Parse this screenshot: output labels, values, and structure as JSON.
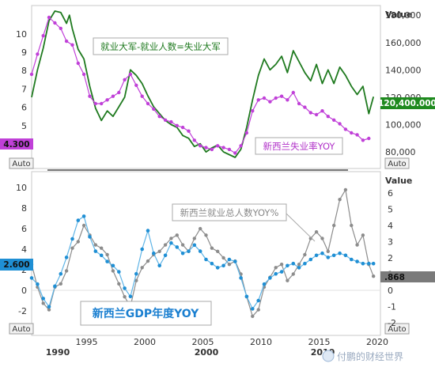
{
  "colors": {
    "unemployed": "#1f7a1f",
    "unemp_rate": "#c040d8",
    "gdp": "#1f8fd4",
    "employment": "#8c8c8c",
    "annotation_green": "#1f7a1f",
    "annotation_purple": "#b030c8",
    "annotation_blue": "#1a7fd0",
    "annotation_gray": "#888888",
    "badge_purple": "#c040d8",
    "badge_green": "#1f8a1f",
    "badge_blue": "#1f8fd4",
    "badge_gray": "#7a7a7a"
  },
  "labels": {
    "value_top": "Value",
    "value_bottom": "Value",
    "auto": "Auto",
    "annot_unemployed": "就业大军-就业人数=失业大军",
    "annot_rate": "新西兰失业率YOY",
    "annot_employment": "新西兰就业总人数YOY%",
    "annot_gdp": "新西兰GDP年度YOY",
    "badge_rate": "4.300",
    "badge_unemployed": "120,400.000",
    "badge_gdp": "2.600",
    "badge_employment": ".868",
    "watermark": "付鹏的财经世界"
  },
  "xaxis": {
    "years_top": [
      "1995",
      "2000",
      "2005",
      "2010",
      "2015",
      "2020"
    ],
    "years_bottom": [
      "1990",
      "2000",
      "2010"
    ]
  },
  "chart_data": [
    {
      "type": "line",
      "xlim": [
        1990,
        2020
      ],
      "y_left": {
        "ticks": [
          5,
          6,
          7,
          8,
          9,
          10
        ]
      },
      "y_right": {
        "ticks": [
          "80,000",
          "100,000",
          "120,000",
          "140,000",
          "160,000",
          "180,000"
        ]
      },
      "series": [
        {
          "name": "就业大军-就业人数=失业大军",
          "axis": "right",
          "points": [
            [
              1990.0,
              120000
            ],
            [
              1990.5,
              140000
            ],
            [
              1991.0,
              156000
            ],
            [
              1991.5,
              176000
            ],
            [
              1992.0,
              183000
            ],
            [
              1992.5,
              182000
            ],
            [
              1993.0,
              174000
            ],
            [
              1993.25,
              180000
            ],
            [
              1993.5,
              170000
            ],
            [
              1994.0,
              155000
            ],
            [
              1994.5,
              148000
            ],
            [
              1995.0,
              128000
            ],
            [
              1995.5,
              112000
            ],
            [
              1996.0,
              103000
            ],
            [
              1996.5,
              110000
            ],
            [
              1997.0,
              106000
            ],
            [
              1997.5,
              113000
            ],
            [
              1998.0,
              120000
            ],
            [
              1998.5,
              140000
            ],
            [
              1999.0,
              136000
            ],
            [
              1999.5,
              130000
            ],
            [
              2000.0,
              121000
            ],
            [
              2000.5,
              113000
            ],
            [
              2001.0,
              108000
            ],
            [
              2001.5,
              103000
            ],
            [
              2002.0,
              100000
            ],
            [
              2002.5,
              98000
            ],
            [
              2003.0,
              92000
            ],
            [
              2003.5,
              90000
            ],
            [
              2004.0,
              84000
            ],
            [
              2004.5,
              86000
            ],
            [
              2005.0,
              80000
            ],
            [
              2005.5,
              83000
            ],
            [
              2006.0,
              85000
            ],
            [
              2006.5,
              80000
            ],
            [
              2007.0,
              78000
            ],
            [
              2007.5,
              76000
            ],
            [
              2008.0,
              82000
            ],
            [
              2008.5,
              98000
            ],
            [
              2009.0,
              118000
            ],
            [
              2009.5,
              136000
            ],
            [
              2010.0,
              148000
            ],
            [
              2010.5,
              140000
            ],
            [
              2011.0,
              144000
            ],
            [
              2011.5,
              150000
            ],
            [
              2012.0,
              138000
            ],
            [
              2012.5,
              154000
            ],
            [
              2013.0,
              146000
            ],
            [
              2013.5,
              138000
            ],
            [
              2014.0,
              132000
            ],
            [
              2014.5,
              144000
            ],
            [
              2015.0,
              130000
            ],
            [
              2015.5,
              140000
            ],
            [
              2016.0,
              130000
            ],
            [
              2016.5,
              142000
            ],
            [
              2017.0,
              136000
            ],
            [
              2017.5,
              128000
            ],
            [
              2018.0,
              122000
            ],
            [
              2018.5,
              128000
            ],
            [
              2019.0,
              108000
            ],
            [
              2019.4,
              120400
            ]
          ]
        },
        {
          "name": "新西兰失业率YOY",
          "axis": "left",
          "points": [
            [
              1990.0,
              7.8
            ],
            [
              1990.5,
              8.9
            ],
            [
              1991.0,
              9.9
            ],
            [
              1991.5,
              10.9
            ],
            [
              1992.0,
              10.6
            ],
            [
              1992.5,
              10.3
            ],
            [
              1993.0,
              9.6
            ],
            [
              1993.5,
              9.4
            ],
            [
              1994.0,
              8.4
            ],
            [
              1994.5,
              7.8
            ],
            [
              1995.0,
              6.6
            ],
            [
              1995.5,
              6.2
            ],
            [
              1996.0,
              6.2
            ],
            [
              1996.5,
              6.4
            ],
            [
              1997.0,
              6.6
            ],
            [
              1997.5,
              6.8
            ],
            [
              1998.0,
              7.5
            ],
            [
              1998.5,
              7.8
            ],
            [
              1999.0,
              7.2
            ],
            [
              1999.5,
              6.6
            ],
            [
              2000.0,
              6.2
            ],
            [
              2000.5,
              5.9
            ],
            [
              2001.0,
              5.5
            ],
            [
              2001.5,
              5.3
            ],
            [
              2002.0,
              5.2
            ],
            [
              2002.5,
              5.0
            ],
            [
              2003.0,
              4.9
            ],
            [
              2003.5,
              4.7
            ],
            [
              2004.0,
              4.2
            ],
            [
              2004.5,
              3.9
            ],
            [
              2005.0,
              3.8
            ],
            [
              2005.5,
              3.7
            ],
            [
              2006.0,
              3.9
            ],
            [
              2006.5,
              3.8
            ],
            [
              2007.0,
              3.7
            ],
            [
              2007.5,
              3.5
            ],
            [
              2008.0,
              3.9
            ],
            [
              2008.5,
              4.6
            ],
            [
              2009.0,
              5.8
            ],
            [
              2009.5,
              6.4
            ],
            [
              2010.0,
              6.5
            ],
            [
              2010.5,
              6.3
            ],
            [
              2011.0,
              6.5
            ],
            [
              2011.5,
              6.6
            ],
            [
              2012.0,
              6.4
            ],
            [
              2012.5,
              6.8
            ],
            [
              2013.0,
              6.2
            ],
            [
              2013.5,
              6.0
            ],
            [
              2014.0,
              5.7
            ],
            [
              2014.5,
              5.6
            ],
            [
              2015.0,
              5.8
            ],
            [
              2015.5,
              5.5
            ],
            [
              2016.0,
              5.3
            ],
            [
              2016.5,
              5.1
            ],
            [
              2017.0,
              4.8
            ],
            [
              2017.5,
              4.6
            ],
            [
              2018.0,
              4.5
            ],
            [
              2018.5,
              4.2
            ],
            [
              2019.0,
              4.3
            ]
          ]
        }
      ]
    },
    {
      "type": "line",
      "xlim": [
        1990,
        2020
      ],
      "y_left": {
        "ticks": [
          -2,
          0,
          2,
          4,
          6,
          8,
          10
        ]
      },
      "y_right": {
        "ticks": [
          -2,
          -1,
          0,
          1,
          2,
          3,
          4,
          5,
          6
        ]
      },
      "series": [
        {
          "name": "新西兰GDP年度YOY",
          "axis": "left",
          "points": [
            [
              1990.0,
              1.2
            ],
            [
              1990.5,
              0.6
            ],
            [
              1991.0,
              -0.8
            ],
            [
              1991.5,
              -1.6
            ],
            [
              1992.0,
              0.4
            ],
            [
              1992.5,
              1.6
            ],
            [
              1993.0,
              3.2
            ],
            [
              1993.5,
              5.0
            ],
            [
              1994.0,
              6.8
            ],
            [
              1994.5,
              7.2
            ],
            [
              1995.0,
              5.2
            ],
            [
              1995.5,
              3.8
            ],
            [
              1996.0,
              3.4
            ],
            [
              1996.5,
              2.8
            ],
            [
              1997.0,
              2.4
            ],
            [
              1997.5,
              1.8
            ],
            [
              1998.0,
              0.2
            ],
            [
              1998.5,
              -0.6
            ],
            [
              1999.0,
              1.6
            ],
            [
              1999.5,
              4.0
            ],
            [
              2000.0,
              5.8
            ],
            [
              2000.5,
              3.6
            ],
            [
              2001.0,
              2.4
            ],
            [
              2001.5,
              3.4
            ],
            [
              2002.0,
              4.6
            ],
            [
              2002.5,
              4.2
            ],
            [
              2003.0,
              3.6
            ],
            [
              2003.5,
              3.8
            ],
            [
              2004.0,
              4.4
            ],
            [
              2004.5,
              3.8
            ],
            [
              2005.0,
              3.0
            ],
            [
              2005.5,
              2.6
            ],
            [
              2006.0,
              2.2
            ],
            [
              2006.5,
              2.4
            ],
            [
              2007.0,
              3.0
            ],
            [
              2007.5,
              2.8
            ],
            [
              2008.0,
              1.2
            ],
            [
              2008.5,
              -0.6
            ],
            [
              2009.0,
              -1.8
            ],
            [
              2009.5,
              -1.0
            ],
            [
              2010.0,
              0.6
            ],
            [
              2010.5,
              1.2
            ],
            [
              2011.0,
              1.6
            ],
            [
              2011.5,
              1.8
            ],
            [
              2012.0,
              2.4
            ],
            [
              2012.5,
              2.6
            ],
            [
              2013.0,
              2.2
            ],
            [
              2013.5,
              2.6
            ],
            [
              2014.0,
              3.0
            ],
            [
              2014.5,
              3.4
            ],
            [
              2015.0,
              3.6
            ],
            [
              2015.5,
              3.2
            ],
            [
              2016.0,
              3.4
            ],
            [
              2016.5,
              3.6
            ],
            [
              2017.0,
              3.4
            ],
            [
              2017.5,
              3.0
            ],
            [
              2018.0,
              2.8
            ],
            [
              2018.5,
              2.6
            ],
            [
              2019.0,
              2.6
            ],
            [
              2019.4,
              2.6
            ]
          ]
        },
        {
          "name": "新西兰就业总人数YOY%",
          "axis": "right",
          "points": [
            [
              1990.0,
              1.6
            ],
            [
              1990.5,
              0.2
            ],
            [
              1991.0,
              -0.8
            ],
            [
              1991.5,
              -1.2
            ],
            [
              1992.0,
              0.2
            ],
            [
              1992.5,
              0.4
            ],
            [
              1993.0,
              1.2
            ],
            [
              1993.5,
              2.6
            ],
            [
              1994.0,
              3.0
            ],
            [
              1994.5,
              4.0
            ],
            [
              1995.0,
              3.4
            ],
            [
              1995.5,
              2.8
            ],
            [
              1996.0,
              2.6
            ],
            [
              1996.5,
              2.2
            ],
            [
              1997.0,
              1.2
            ],
            [
              1997.5,
              0.4
            ],
            [
              1998.0,
              -0.4
            ],
            [
              1998.5,
              -1.0
            ],
            [
              1999.0,
              0.6
            ],
            [
              1999.5,
              1.4
            ],
            [
              2000.0,
              1.8
            ],
            [
              2000.5,
              2.2
            ],
            [
              2001.0,
              2.4
            ],
            [
              2001.5,
              2.8
            ],
            [
              2002.0,
              3.2
            ],
            [
              2002.5,
              3.4
            ],
            [
              2003.0,
              2.8
            ],
            [
              2003.5,
              2.4
            ],
            [
              2004.0,
              3.2
            ],
            [
              2004.5,
              3.8
            ],
            [
              2005.0,
              3.4
            ],
            [
              2005.5,
              2.6
            ],
            [
              2006.0,
              2.4
            ],
            [
              2006.5,
              2.0
            ],
            [
              2007.0,
              1.6
            ],
            [
              2007.5,
              1.8
            ],
            [
              2008.0,
              1.0
            ],
            [
              2008.5,
              -0.4
            ],
            [
              2009.0,
              -1.6
            ],
            [
              2009.5,
              -1.2
            ],
            [
              2010.0,
              0.2
            ],
            [
              2010.5,
              0.8
            ],
            [
              2011.0,
              1.4
            ],
            [
              2011.5,
              1.6
            ],
            [
              2012.0,
              0.6
            ],
            [
              2012.5,
              1.0
            ],
            [
              2013.0,
              1.6
            ],
            [
              2013.5,
              2.2
            ],
            [
              2014.0,
              3.2
            ],
            [
              2014.5,
              3.6
            ],
            [
              2015.0,
              3.2
            ],
            [
              2015.5,
              2.4
            ],
            [
              2016.0,
              4.0
            ],
            [
              2016.5,
              5.6
            ],
            [
              2017.0,
              6.2
            ],
            [
              2017.5,
              4.0
            ],
            [
              2018.0,
              2.8
            ],
            [
              2018.5,
              3.4
            ],
            [
              2019.0,
              1.6
            ],
            [
              2019.4,
              0.868
            ]
          ]
        }
      ]
    }
  ]
}
